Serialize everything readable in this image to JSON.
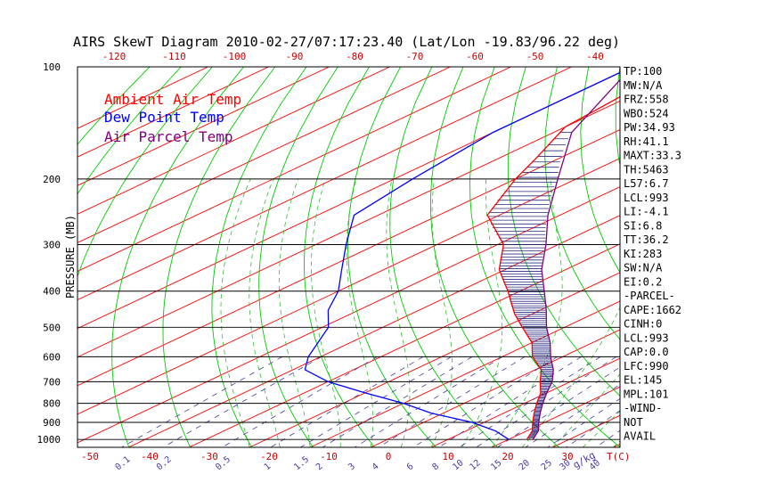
{
  "chart_data": {
    "type": "skewt",
    "title": "AIRS SkewT Diagram 2010-02-27/07:17:23.40 (Lat/Lon -19.83/96.22 deg)",
    "ylabel": "PRESSURE (MB)",
    "xlabel": "T(C)",
    "mixing_ratio_unit": "g/kg",
    "ylim": [
      100,
      1050
    ],
    "xlim_bottom": [
      -50,
      40
    ],
    "top_axis_ticks": [
      "-120",
      "-110",
      "-100",
      "-90",
      "-80",
      "-70",
      "-60",
      "-50",
      "-40"
    ],
    "bottom_axis_ticks": [
      "-50",
      "-40",
      "-30",
      "-20",
      "-10",
      "0",
      "10",
      "20",
      "30"
    ],
    "pressure_ticks": [
      {
        "p": 100,
        "label": "100"
      },
      {
        "p": 200,
        "label": "200"
      },
      {
        "p": 300,
        "label": "300"
      },
      {
        "p": 400,
        "label": "400"
      },
      {
        "p": 500,
        "label": "500"
      },
      {
        "p": 600,
        "label": "600"
      },
      {
        "p": 700,
        "label": "700"
      },
      {
        "p": 800,
        "label": "800"
      },
      {
        "p": 900,
        "label": "900"
      },
      {
        "p": 1000,
        "label": "1000"
      }
    ],
    "mixing_ratio_labels": [
      "0.1",
      "0.2",
      "0.5",
      "1",
      "1.5",
      "2",
      "3",
      "4",
      "6",
      "8",
      "10",
      "12",
      "15",
      "20",
      "25",
      "30",
      "40"
    ],
    "legend": [
      {
        "name": "Ambient Air Temp",
        "color": "#ff0000"
      },
      {
        "name": "Dew Point Temp",
        "color": "#0000ff"
      },
      {
        "name": "Air Parcel Temp",
        "color": "#800080"
      }
    ],
    "series": [
      {
        "name": "Ambient Air Temp",
        "color": "#ff0000",
        "points": [
          [
            100,
            -83
          ],
          [
            145,
            -80
          ],
          [
            175,
            -74
          ],
          [
            200,
            -70
          ],
          [
            250,
            -62
          ],
          [
            300,
            -49
          ],
          [
            350,
            -41
          ],
          [
            400,
            -32
          ],
          [
            460,
            -23
          ],
          [
            500,
            -17
          ],
          [
            550,
            -10
          ],
          [
            600,
            -5
          ],
          [
            650,
            1
          ],
          [
            700,
            5
          ],
          [
            750,
            9
          ],
          [
            800,
            12
          ],
          [
            850,
            15
          ],
          [
            900,
            18
          ],
          [
            950,
            21
          ],
          [
            1000,
            23
          ]
        ]
      },
      {
        "name": "Dew Point Temp",
        "color": "#0000ff",
        "points": [
          [
            100,
            -90
          ],
          [
            150,
            -90
          ],
          [
            200,
            -87
          ],
          [
            250,
            -84
          ],
          [
            300,
            -75
          ],
          [
            350,
            -67
          ],
          [
            400,
            -60
          ],
          [
            450,
            -55
          ],
          [
            500,
            -49
          ],
          [
            600,
            -42
          ],
          [
            650,
            -38
          ],
          [
            700,
            -30
          ],
          [
            750,
            -20
          ],
          [
            800,
            -10
          ],
          [
            850,
            -2
          ],
          [
            900,
            8
          ],
          [
            950,
            15
          ],
          [
            1000,
            20
          ]
        ]
      },
      {
        "name": "Air Parcel Temp",
        "color": "#800080",
        "points": [
          [
            100,
            -90
          ],
          [
            150,
            -77
          ],
          [
            200,
            -63
          ],
          [
            250,
            -52
          ],
          [
            300,
            -42
          ],
          [
            350,
            -34
          ],
          [
            400,
            -26
          ],
          [
            450,
            -19
          ],
          [
            500,
            -13
          ],
          [
            550,
            -7
          ],
          [
            600,
            -2
          ],
          [
            650,
            3
          ],
          [
            700,
            7
          ],
          [
            750,
            10
          ],
          [
            800,
            13
          ],
          [
            850,
            16
          ],
          [
            900,
            19
          ],
          [
            950,
            22
          ],
          [
            1000,
            24
          ]
        ]
      }
    ]
  },
  "indices": [
    "TP:100",
    "MW:N/A",
    "FRZ:558",
    "WBO:524",
    "PW:34.93",
    "RH:41.1",
    "MAXT:33.3",
    "TH:5463",
    "L57:6.7",
    "LCL:993",
    "LI:-4.1",
    "SI:6.8",
    "TT:36.2",
    "KI:283",
    "SW:N/A",
    "EI:0.2",
    "-PARCEL-",
    "CAPE:1662",
    "CINH:0",
    "LCL:993",
    "CAP:0.0",
    "LFC:990",
    "EL:145",
    "MPL:101",
    "-WIND-",
    "NOT",
    "AVAIL"
  ],
  "colors": {
    "isotherm": "#ff0000",
    "dry_adiabat": "#00cc00",
    "moist_adiabat": "#33bb33",
    "mixing_ratio": "#4b3a9e",
    "isobar": "#000000",
    "cape_hatch": "#2a2a80"
  }
}
